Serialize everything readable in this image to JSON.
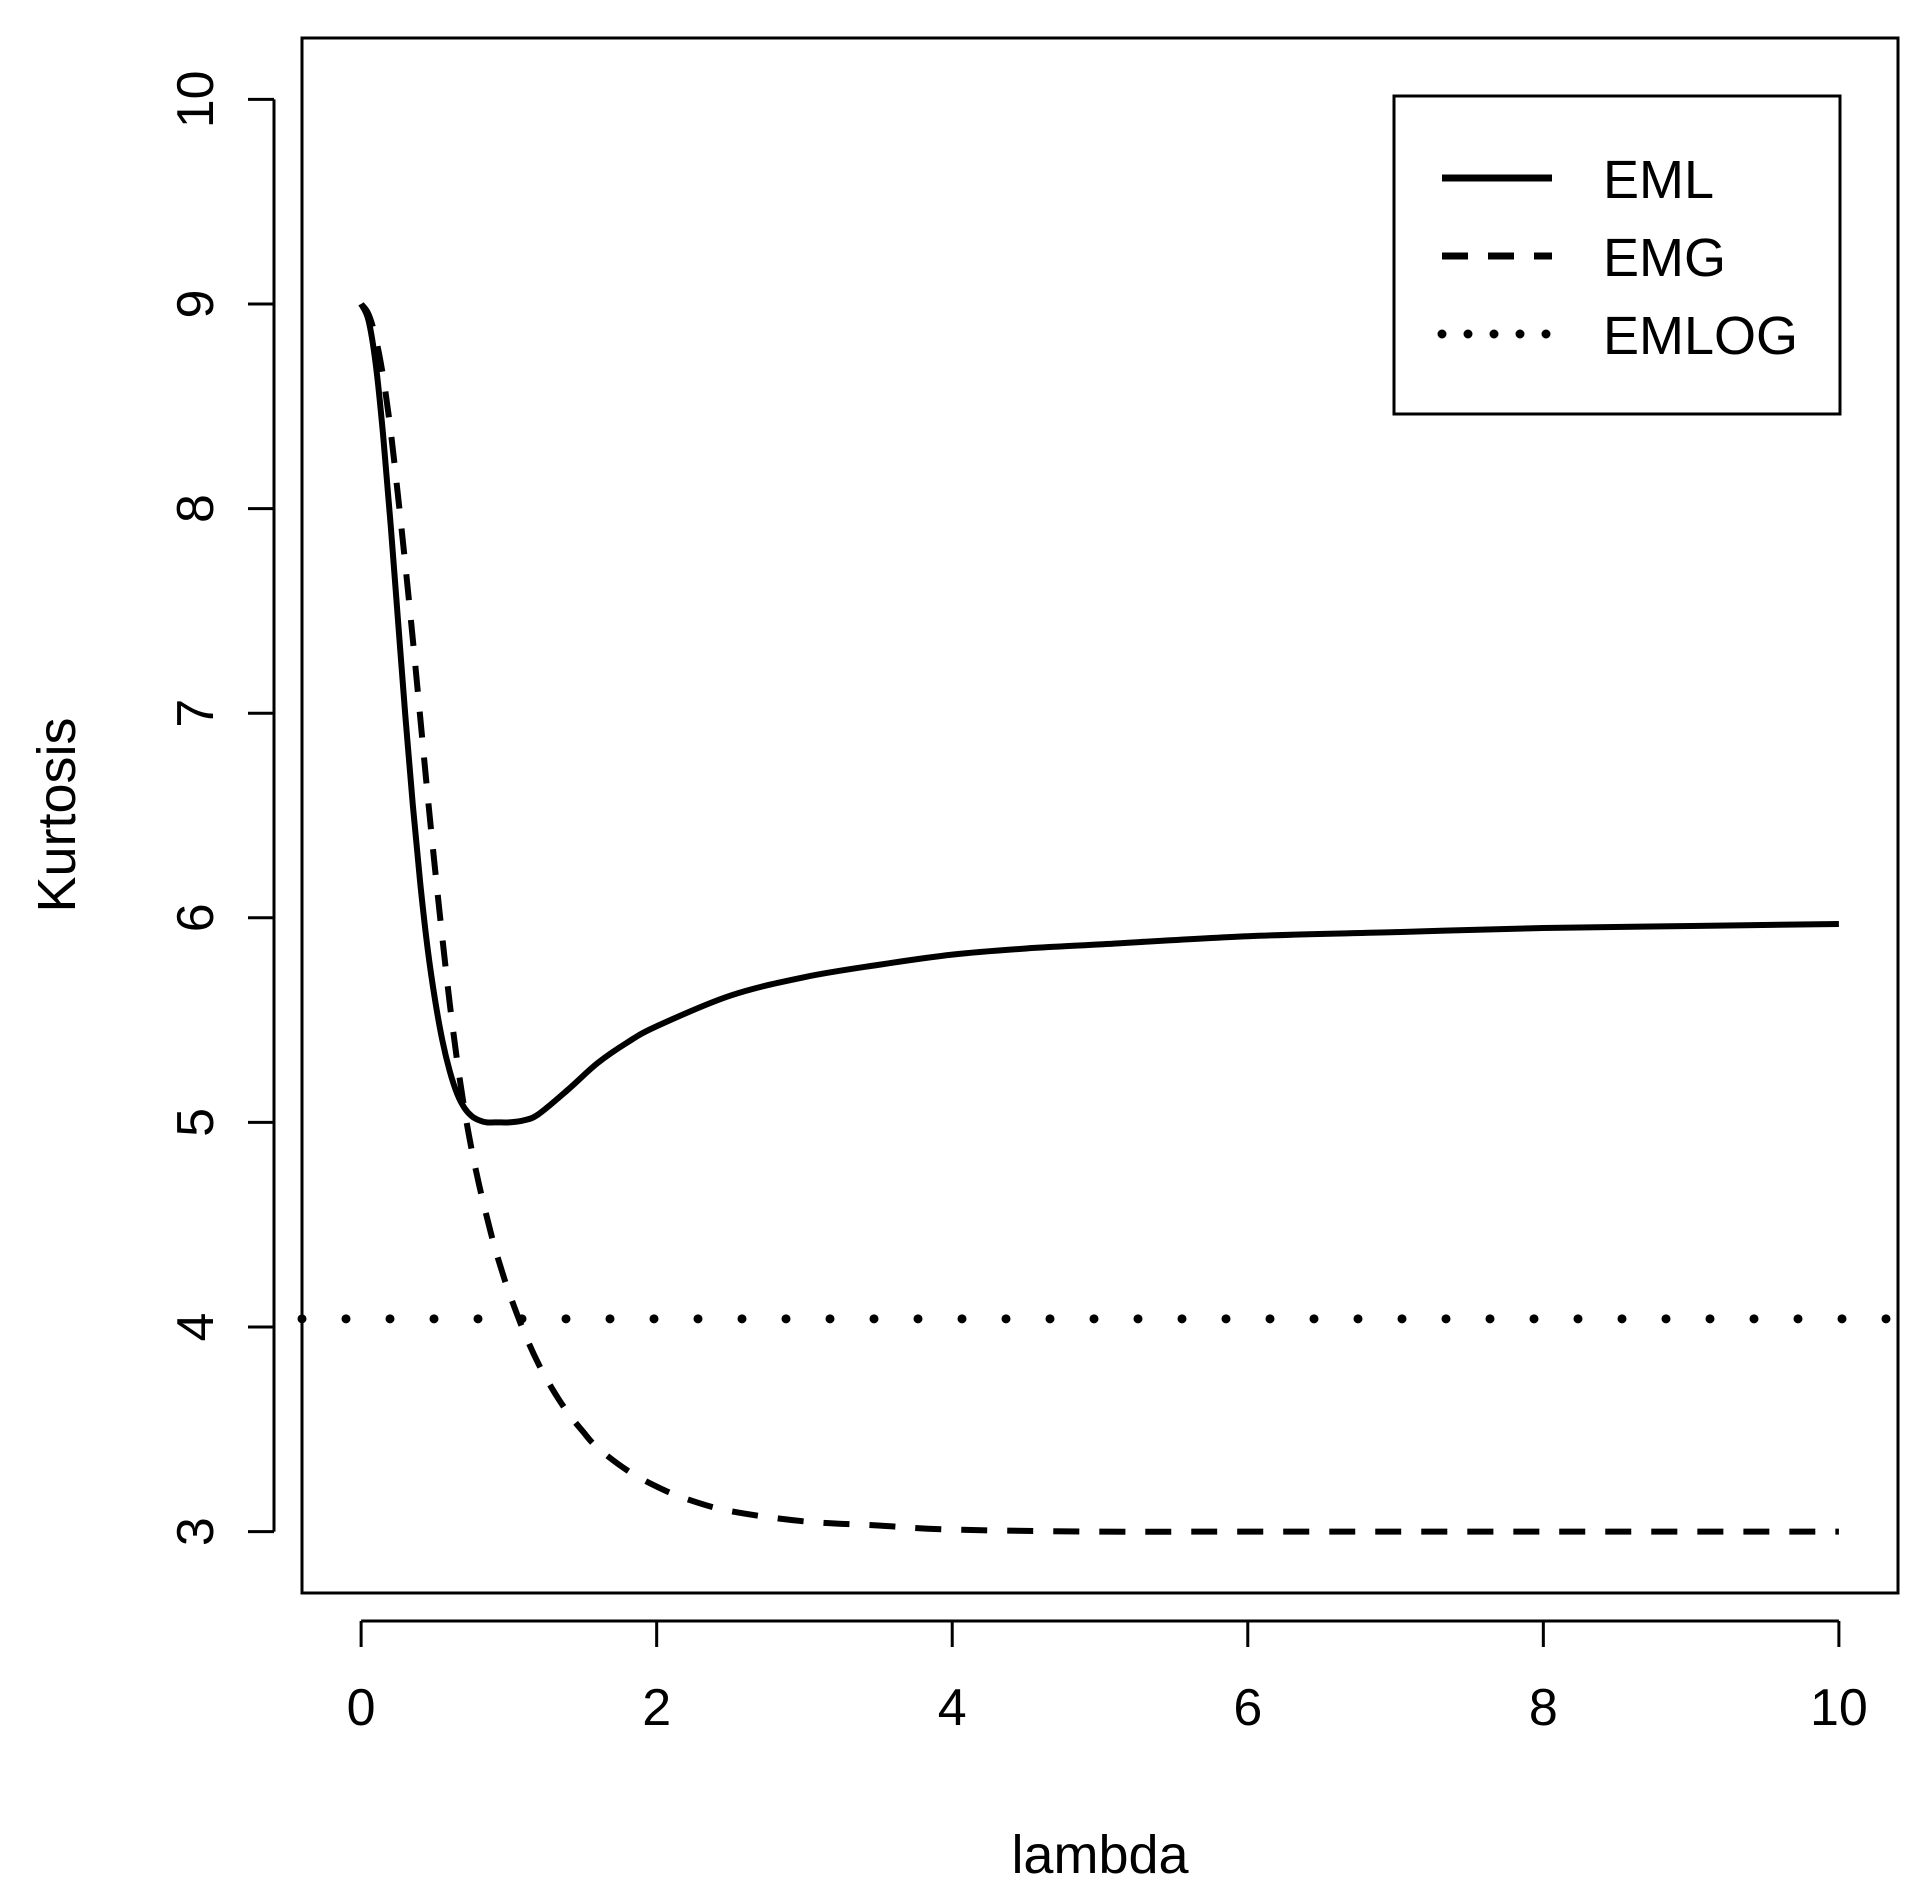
{
  "chart_data": {
    "type": "line",
    "title": "",
    "xlabel": "lambda",
    "ylabel": "Kurtosis",
    "xlim": [
      -0.4,
      10.4
    ],
    "ylim": [
      2.7,
      10.3
    ],
    "xticks": [
      0,
      2,
      4,
      6,
      8,
      10
    ],
    "yticks": [
      3,
      4,
      5,
      6,
      7,
      8,
      9,
      10
    ],
    "grid": false,
    "legend_position": "top-right",
    "series": [
      {
        "name": "EML",
        "style": "solid",
        "x": [
          0.0,
          0.05,
          0.1,
          0.15,
          0.2,
          0.25,
          0.3,
          0.35,
          0.4,
          0.45,
          0.5,
          0.55,
          0.6,
          0.65,
          0.7,
          0.75,
          0.8,
          0.85,
          0.9,
          0.95,
          1.0,
          1.1,
          1.2,
          1.4,
          1.6,
          1.8,
          2.0,
          2.5,
          3.0,
          3.5,
          4.0,
          4.5,
          5.0,
          6.0,
          7.0,
          8.0,
          9.0,
          10.0
        ],
        "y": [
          9.0,
          8.92,
          8.7,
          8.35,
          7.92,
          7.45,
          6.98,
          6.55,
          6.17,
          5.85,
          5.6,
          5.4,
          5.25,
          5.14,
          5.07,
          5.03,
          5.01,
          5.0,
          5.0,
          5.0,
          5.0,
          5.01,
          5.04,
          5.16,
          5.29,
          5.39,
          5.47,
          5.62,
          5.71,
          5.77,
          5.82,
          5.85,
          5.87,
          5.91,
          5.93,
          5.95,
          5.96,
          5.97
        ]
      },
      {
        "name": "EMG",
        "style": "dashed",
        "x": [
          0.0,
          0.05,
          0.1,
          0.15,
          0.2,
          0.25,
          0.3,
          0.35,
          0.4,
          0.45,
          0.5,
          0.55,
          0.6,
          0.65,
          0.7,
          0.75,
          0.8,
          0.85,
          0.9,
          0.95,
          1.0,
          1.1,
          1.2,
          1.3,
          1.4,
          1.5,
          1.6,
          1.8,
          2.0,
          2.2,
          2.5,
          3.0,
          3.5,
          4.0,
          5.0,
          6.0,
          8.0,
          10.0
        ],
        "y": [
          9.0,
          8.95,
          8.83,
          8.64,
          8.38,
          8.06,
          7.72,
          7.36,
          6.98,
          6.6,
          6.24,
          5.9,
          5.58,
          5.3,
          5.06,
          4.86,
          4.69,
          4.54,
          4.4,
          4.28,
          4.17,
          3.98,
          3.82,
          3.69,
          3.58,
          3.49,
          3.41,
          3.3,
          3.22,
          3.16,
          3.1,
          3.05,
          3.03,
          3.01,
          3.0,
          3.0,
          3.0,
          3.0
        ]
      },
      {
        "name": "EMLOG",
        "style": "dotted",
        "x": [
          -0.4,
          10.4
        ],
        "y": [
          4.04,
          4.04
        ]
      }
    ]
  }
}
